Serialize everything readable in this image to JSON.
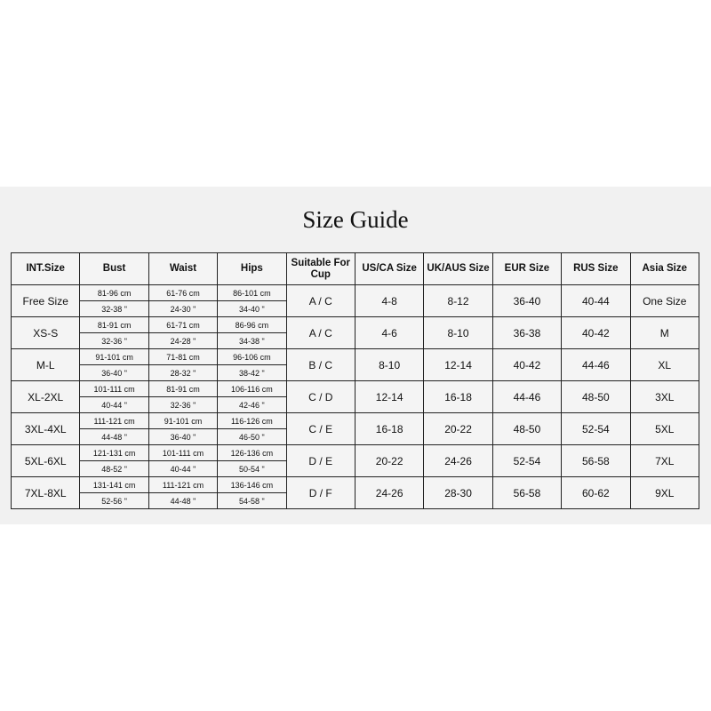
{
  "title": "Size Guide",
  "headers": [
    "INT.Size",
    "Bust",
    "Waist",
    "Hips",
    "Suitable For Cup",
    "US/CA Size",
    "UK/AUS Size",
    "EUR Size",
    "RUS Size",
    "Asia Size"
  ],
  "rows": [
    {
      "int": "Free Size",
      "bust_cm": "81-96 cm",
      "bust_in": "32-38 \"",
      "waist_cm": "61-76 cm",
      "waist_in": "24-30 \"",
      "hips_cm": "86-101 cm",
      "hips_in": "34-40 \"",
      "cup": "A / C",
      "us": "4-8",
      "uk": "8-12",
      "eur": "36-40",
      "rus": "40-44",
      "asia": "One Size"
    },
    {
      "int": "XS-S",
      "bust_cm": "81-91 cm",
      "bust_in": "32-36 \"",
      "waist_cm": "61-71 cm",
      "waist_in": "24-28 \"",
      "hips_cm": "86-96 cm",
      "hips_in": "34-38 \"",
      "cup": "A / C",
      "us": "4-6",
      "uk": "8-10",
      "eur": "36-38",
      "rus": "40-42",
      "asia": "M"
    },
    {
      "int": "M-L",
      "bust_cm": "91-101 cm",
      "bust_in": "36-40 \"",
      "waist_cm": "71-81 cm",
      "waist_in": "28-32 \"",
      "hips_cm": "96-106 cm",
      "hips_in": "38-42 \"",
      "cup": "B / C",
      "us": "8-10",
      "uk": "12-14",
      "eur": "40-42",
      "rus": "44-46",
      "asia": "XL"
    },
    {
      "int": "XL-2XL",
      "bust_cm": "101-111 cm",
      "bust_in": "40-44 \"",
      "waist_cm": "81-91 cm",
      "waist_in": "32-36 \"",
      "hips_cm": "106-116 cm",
      "hips_in": "42-46 \"",
      "cup": "C / D",
      "us": "12-14",
      "uk": "16-18",
      "eur": "44-46",
      "rus": "48-50",
      "asia": "3XL"
    },
    {
      "int": "3XL-4XL",
      "bust_cm": "111-121 cm",
      "bust_in": "44-48 \"",
      "waist_cm": "91-101 cm",
      "waist_in": "36-40 \"",
      "hips_cm": "116-126 cm",
      "hips_in": "46-50 \"",
      "cup": "C / E",
      "us": "16-18",
      "uk": "20-22",
      "eur": "48-50",
      "rus": "52-54",
      "asia": "5XL"
    },
    {
      "int": "5XL-6XL",
      "bust_cm": "121-131 cm",
      "bust_in": "48-52 \"",
      "waist_cm": "101-111 cm",
      "waist_in": "40-44 \"",
      "hips_cm": "126-136 cm",
      "hips_in": "50-54 \"",
      "cup": "D / E",
      "us": "20-22",
      "uk": "24-26",
      "eur": "52-54",
      "rus": "56-58",
      "asia": "7XL"
    },
    {
      "int": "7XL-8XL",
      "bust_cm": "131-141 cm",
      "bust_in": "52-56 \"",
      "waist_cm": "111-121 cm",
      "waist_in": "44-48 \"",
      "hips_cm": "136-146 cm",
      "hips_in": "54-58 \"",
      "cup": "D / F",
      "us": "24-26",
      "uk": "28-30",
      "eur": "56-58",
      "rus": "60-62",
      "asia": "9XL"
    }
  ]
}
